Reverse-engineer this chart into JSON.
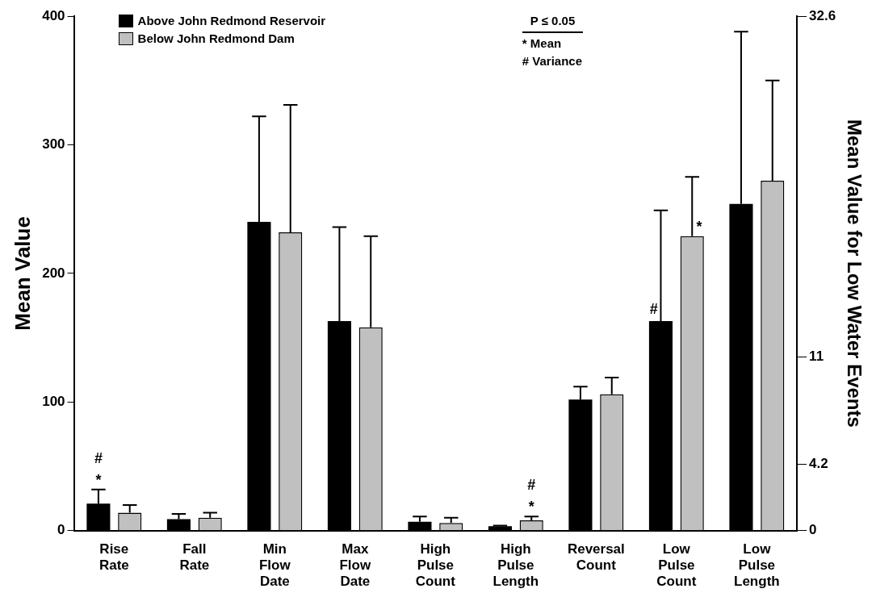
{
  "chart_data": {
    "type": "bar",
    "ylabel": "Mean Value",
    "y2label": "Mean Value for Low Water Events",
    "categories": [
      "Rise Rate",
      "Fall Rate",
      "Min Flow Date",
      "Max Flow Date",
      "High Pulse Count",
      "High Pulse Length",
      "Reversal Count",
      "Low Pulse Count",
      "Low Pulse Length"
    ],
    "series": [
      {
        "name": "Above John Redmond Reservoir",
        "color": "#000000",
        "values": [
          21,
          9,
          240,
          163,
          7,
          3.5,
          102,
          163,
          254
        ],
        "errors": [
          [
            21,
            32
          ],
          [
            9,
            13
          ],
          [
            240,
            322
          ],
          [
            163,
            236
          ],
          [
            7,
            11
          ],
          [
            3.5,
            4
          ],
          [
            102,
            112
          ],
          [
            163,
            249
          ],
          [
            254,
            388
          ]
        ],
        "value_labels": [
          "#\n*",
          null,
          null,
          null,
          null,
          null,
          null,
          "#",
          null
        ]
      },
      {
        "name": "Below John Redmond Dam",
        "color": "#c0c0c0",
        "values": [
          14,
          10,
          232,
          158,
          6,
          8,
          106,
          229,
          272
        ],
        "errors": [
          [
            14,
            20
          ],
          [
            10,
            14
          ],
          [
            232,
            331
          ],
          [
            158,
            229
          ],
          [
            6,
            10
          ],
          [
            8,
            11
          ],
          [
            106,
            119
          ],
          [
            229,
            275
          ],
          [
            272,
            350
          ]
        ],
        "value_labels": [
          null,
          null,
          null,
          null,
          null,
          "#\n*",
          null,
          "*",
          null
        ]
      }
    ],
    "ylim": [
      0,
      400
    ],
    "yticks": [
      0,
      100,
      200,
      300,
      400
    ],
    "y2lim": [
      0,
      32.6
    ],
    "y2ticks": [
      0,
      4.2,
      11,
      32.6
    ],
    "grid": false,
    "legend": "top left",
    "annotations": [
      "P ≤ 0.05",
      "* Mean",
      "# Variance"
    ]
  }
}
